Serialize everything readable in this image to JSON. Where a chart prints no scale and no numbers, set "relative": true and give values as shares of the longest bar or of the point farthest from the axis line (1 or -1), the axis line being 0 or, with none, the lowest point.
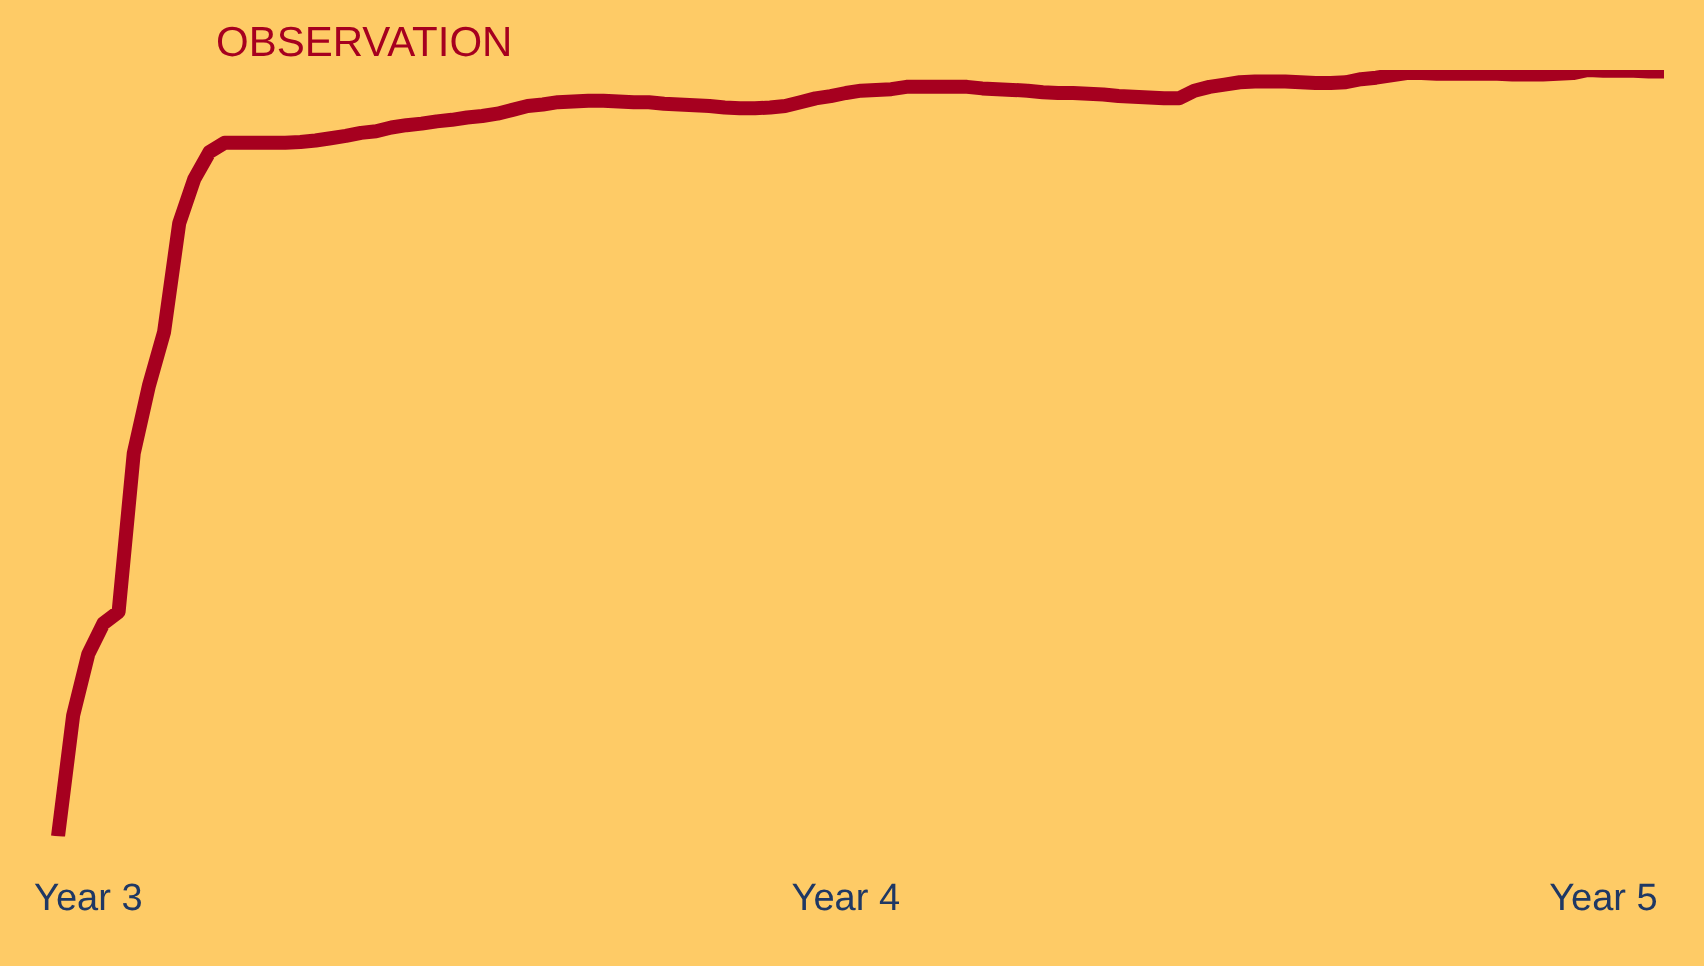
{
  "chart_data": {
    "type": "line",
    "relative": true,
    "categories": [
      null,
      null,
      "Year 3",
      null,
      null,
      null,
      null,
      null,
      null,
      null,
      null,
      null,
      null,
      null,
      null,
      null,
      null,
      null,
      null,
      null,
      null,
      null,
      null,
      null,
      null,
      null,
      null,
      null,
      null,
      null,
      null,
      null,
      null,
      null,
      null,
      null,
      null,
      null,
      null,
      null,
      null,
      null,
      null,
      null,
      null,
      null,
      null,
      null,
      null,
      null,
      null,
      null,
      "Year 4",
      null,
      null,
      null,
      null,
      null,
      null,
      null,
      null,
      null,
      null,
      null,
      null,
      null,
      null,
      null,
      null,
      null,
      null,
      null,
      null,
      null,
      null,
      null,
      null,
      null,
      null,
      null,
      null,
      null,
      null,
      null,
      null,
      null,
      null,
      null,
      null,
      null,
      null,
      null,
      null,
      null,
      null,
      null,
      null,
      null,
      null,
      null,
      null,
      null,
      "Year 5",
      null,
      null,
      null,
      null
    ],
    "grid": false,
    "legend": false,
    "tick_labels": "x",
    "marker": "none",
    "line_style": "solid",
    "series": [
      {
        "name": "OBSERVATION",
        "color": "#a6001f",
        "values": [
          0,
          0.158,
          0.238,
          0.278,
          0.293,
          0.5,
          0.588,
          0.658,
          0.8,
          0.858,
          0.893,
          0.905,
          0.905,
          0.905,
          0.905,
          0.905,
          0.906,
          0.908,
          0.911,
          0.914,
          0.918,
          0.92,
          0.925,
          0.928,
          0.93,
          0.933,
          0.935,
          0.938,
          0.94,
          0.943,
          0.948,
          0.953,
          0.955,
          0.958,
          0.959,
          0.96,
          0.96,
          0.959,
          0.958,
          0.958,
          0.956,
          0.955,
          0.954,
          0.953,
          0.951,
          0.95,
          0.95,
          0.951,
          0.953,
          0.958,
          0.963,
          0.966,
          0.97,
          0.973,
          0.974,
          0.975,
          0.978,
          0.978,
          0.978,
          0.978,
          0.978,
          0.976,
          0.975,
          0.974,
          0.973,
          0.971,
          0.97,
          0.97,
          0.969,
          0.968,
          0.966,
          0.965,
          0.964,
          0.963,
          0.963,
          0.973,
          0.978,
          0.981,
          0.984,
          0.985,
          0.985,
          0.985,
          0.984,
          0.983,
          0.983,
          0.984,
          0.988,
          0.99,
          0.993,
          0.996,
          0.996,
          0.995,
          0.995,
          0.995,
          0.995,
          0.995,
          0.994,
          0.994,
          0.994,
          0.995,
          0.996,
          1,
          0.999,
          0.999,
          0.999,
          0.998,
          0.998
        ]
      }
    ]
  }
}
